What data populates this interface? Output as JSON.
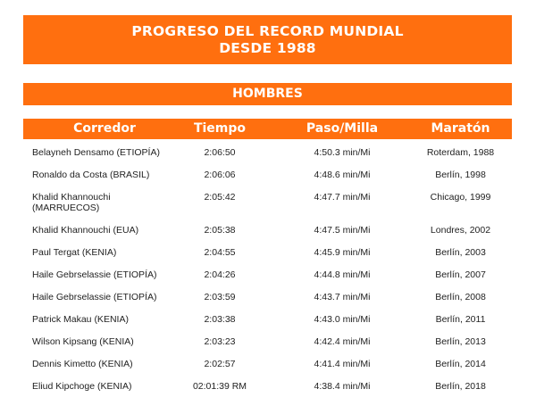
{
  "title": {
    "line1": "PROGRESO DEL RECORD MUNDIAL",
    "line2": "DESDE 1988"
  },
  "section": "HOMBRES",
  "headers": {
    "runner": "Corredor",
    "time": "Tiempo",
    "pace": "Paso/Milla",
    "marathon": "Maratón"
  },
  "records": [
    {
      "runner": "Belayneh Densamo (ETIOPÍA)",
      "time": "2:06:50",
      "pace": "4:50.3 min/Mi",
      "marathon": "Roterdam, 1988"
    },
    {
      "runner": "Ronaldo da Costa (BRASIL)",
      "time": "2:06:06",
      "pace": "4:48.6 min/Mi",
      "marathon": "Berlín, 1998"
    },
    {
      "runner": "Khalid Khannouchi (MARRUECOS)",
      "time": "2:05:42",
      "pace": "4:47.7 min/Mi",
      "marathon": "Chicago, 1999"
    },
    {
      "runner": "Khalid Khannouchi (EUA)",
      "time": "2:05:38",
      "pace": "4:47.5 min/Mi",
      "marathon": "Londres, 2002"
    },
    {
      "runner": "Paul Tergat (KENIA)",
      "time": "2:04:55",
      "pace": "4:45.9 min/Mi",
      "marathon": "Berlín, 2003"
    },
    {
      "runner": "Haile Gebrselassie (ETIOPÍA)",
      "time": "2:04:26",
      "pace": "4:44.8 min/Mi",
      "marathon": "Berlín, 2007"
    },
    {
      "runner": "Haile Gebrselassie (ETIOPÍA)",
      "time": "2:03:59",
      "pace": "4:43.7 min/Mi",
      "marathon": "Berlín, 2008"
    },
    {
      "runner": "Patrick Makau (KENIA)",
      "time": "2:03:38",
      "pace": "4:43.0 min/Mi",
      "marathon": "Berlín, 2011"
    },
    {
      "runner": "Wilson Kipsang (KENIA)",
      "time": "2:03:23",
      "pace": "4:42.4 min/Mi",
      "marathon": "Berlín, 2013"
    },
    {
      "runner": "Dennis Kimetto (KENIA)",
      "time": "2:02:57",
      "pace": "4:41.4 min/Mi",
      "marathon": "Berlín, 2014"
    },
    {
      "runner": "Eliud Kipchoge (KENIA)",
      "time": "02:01:39 RM",
      "pace": "4:38.4 min/Mi",
      "marathon": "Berlín, 2018"
    }
  ]
}
